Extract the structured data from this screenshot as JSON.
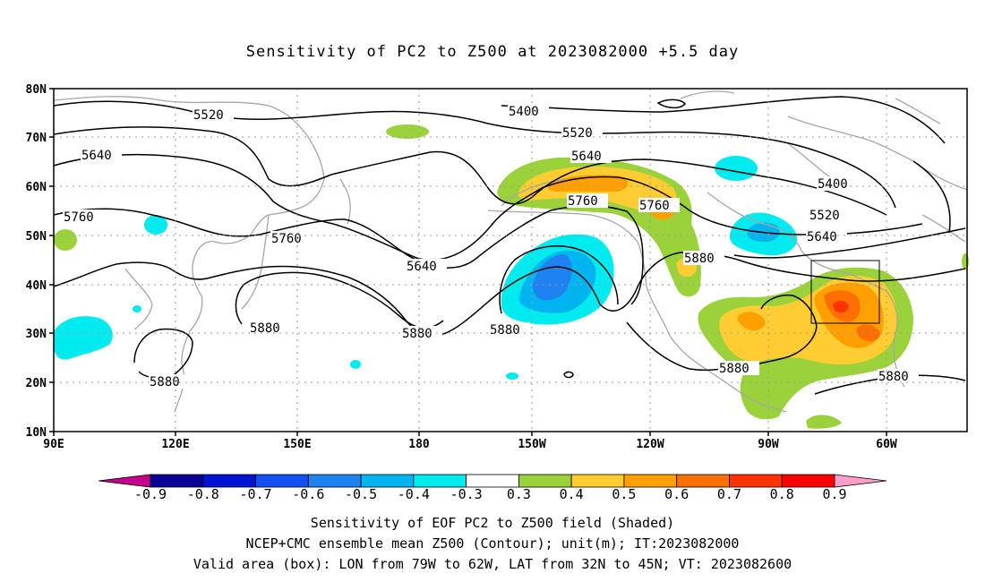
{
  "title": "Sensitivity of PC2 to Z500 at 2023082000 +5.5 day",
  "map": {
    "lon_range": [
      "90E",
      "45W"
    ],
    "lat_range": [
      "10N",
      "80N"
    ],
    "lat_labels": [
      "80N",
      "70N",
      "60N",
      "50N",
      "40N",
      "30N",
      "20N",
      "10N"
    ],
    "lon_labels": [
      "90E",
      "120E",
      "150E",
      "180",
      "150W",
      "120W",
      "90W",
      "60W"
    ],
    "contour_labels": [
      "5400",
      "5520",
      "5640",
      "5760",
      "5880"
    ],
    "valid_box": {
      "lon_from": "79W",
      "lon_to": "62W",
      "lat_from": "32N",
      "lat_to": "45N"
    }
  },
  "colorbar": {
    "labels": [
      "-0.9",
      "-0.8",
      "-0.7",
      "-0.6",
      "-0.5",
      "-0.4",
      "-0.3",
      "0.3",
      "0.4",
      "0.5",
      "0.6",
      "0.7",
      "0.8",
      "0.9"
    ],
    "colors": [
      "#c8008c",
      "#0a0096",
      "#0014d2",
      "#1450f0",
      "#1e82f0",
      "#00b4f0",
      "#00ebf0",
      "#ffffff",
      "#9bd23c",
      "#ffcd32",
      "#ffa000",
      "#ff6e00",
      "#ff3200",
      "#ff0000",
      "#ff9ec8"
    ]
  },
  "captions": {
    "line1": "Sensitivity of EOF PC2 to Z500 field (Shaded)",
    "line2": "NCEP+CMC ensemble mean Z500 (Contour); unit(m); IT:2023082000",
    "line3": "Valid area (box): LON from 79W to 62W, LAT from 32N to 45N; VT: 2023082600"
  }
}
